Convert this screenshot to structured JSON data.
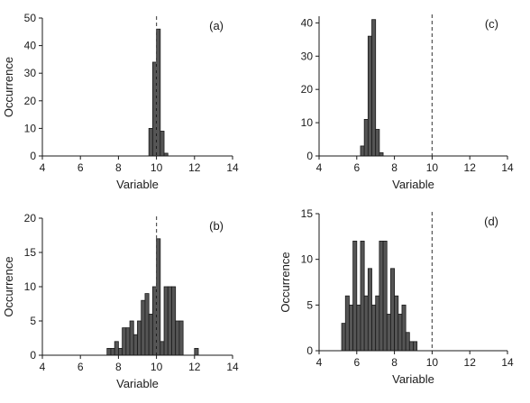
{
  "chart_data": [
    {
      "type": "bar",
      "panel_label": "(a)",
      "xlabel": "Variable",
      "ylabel": "Occurrence",
      "xlim": [
        4,
        14
      ],
      "ylim": [
        0,
        50
      ],
      "xticks": [
        4,
        6,
        8,
        10,
        12,
        14
      ],
      "yticks": [
        0,
        10,
        20,
        30,
        40,
        50
      ],
      "reference_x": 10,
      "bin_width": 0.2,
      "bins": [
        {
          "x": 9.6,
          "count": 10
        },
        {
          "x": 9.8,
          "count": 34
        },
        {
          "x": 10.0,
          "count": 46
        },
        {
          "x": 10.2,
          "count": 9
        },
        {
          "x": 10.4,
          "count": 1
        }
      ]
    },
    {
      "type": "bar",
      "panel_label": "(b)",
      "xlabel": "Variable",
      "ylabel": "Occurrence",
      "xlim": [
        4,
        14
      ],
      "ylim": [
        0,
        20
      ],
      "xticks": [
        4,
        6,
        8,
        10,
        12,
        14
      ],
      "yticks": [
        0,
        5,
        10,
        15,
        20
      ],
      "reference_x": 10,
      "bin_width": 0.2,
      "bins": [
        {
          "x": 7.4,
          "count": 1
        },
        {
          "x": 7.6,
          "count": 1
        },
        {
          "x": 7.8,
          "count": 2
        },
        {
          "x": 8.0,
          "count": 1
        },
        {
          "x": 8.2,
          "count": 4
        },
        {
          "x": 8.4,
          "count": 4
        },
        {
          "x": 8.6,
          "count": 5
        },
        {
          "x": 8.8,
          "count": 3
        },
        {
          "x": 9.0,
          "count": 5
        },
        {
          "x": 9.2,
          "count": 8
        },
        {
          "x": 9.4,
          "count": 9
        },
        {
          "x": 9.6,
          "count": 6
        },
        {
          "x": 9.8,
          "count": 10
        },
        {
          "x": 10.0,
          "count": 17
        },
        {
          "x": 10.2,
          "count": 2
        },
        {
          "x": 10.4,
          "count": 10
        },
        {
          "x": 10.6,
          "count": 10
        },
        {
          "x": 10.8,
          "count": 10
        },
        {
          "x": 11.0,
          "count": 5
        },
        {
          "x": 11.2,
          "count": 5
        },
        {
          "x": 12.0,
          "count": 1
        }
      ]
    },
    {
      "type": "bar",
      "panel_label": "(c)",
      "xlabel": "Variable",
      "ylabel": "",
      "xlim": [
        4,
        14
      ],
      "ylim": [
        0,
        42
      ],
      "xticks": [
        4,
        6,
        8,
        10,
        12,
        14
      ],
      "yticks": [
        0,
        10,
        20,
        30,
        40
      ],
      "reference_x": 10,
      "bin_width": 0.2,
      "bins": [
        {
          "x": 6.2,
          "count": 3
        },
        {
          "x": 6.4,
          "count": 11
        },
        {
          "x": 6.6,
          "count": 36
        },
        {
          "x": 6.8,
          "count": 41
        },
        {
          "x": 7.0,
          "count": 8
        },
        {
          "x": 7.2,
          "count": 1
        }
      ]
    },
    {
      "type": "bar",
      "panel_label": "(d)",
      "xlabel": "Variable",
      "ylabel": "Occurrence",
      "xlim": [
        4,
        14
      ],
      "ylim": [
        0,
        15
      ],
      "xticks": [
        4,
        6,
        8,
        10,
        12,
        14
      ],
      "yticks": [
        0,
        5,
        10,
        15
      ],
      "reference_x": 10,
      "bin_width": 0.2,
      "bins": [
        {
          "x": 5.2,
          "count": 3
        },
        {
          "x": 5.4,
          "count": 6
        },
        {
          "x": 5.6,
          "count": 5
        },
        {
          "x": 5.8,
          "count": 12
        },
        {
          "x": 6.0,
          "count": 5
        },
        {
          "x": 6.2,
          "count": 12
        },
        {
          "x": 6.4,
          "count": 6
        },
        {
          "x": 6.6,
          "count": 9
        },
        {
          "x": 6.8,
          "count": 5
        },
        {
          "x": 7.0,
          "count": 6
        },
        {
          "x": 7.2,
          "count": 12
        },
        {
          "x": 7.4,
          "count": 12
        },
        {
          "x": 7.6,
          "count": 4
        },
        {
          "x": 7.8,
          "count": 9
        },
        {
          "x": 8.0,
          "count": 6
        },
        {
          "x": 8.2,
          "count": 4
        },
        {
          "x": 8.4,
          "count": 5
        },
        {
          "x": 8.6,
          "count": 2
        },
        {
          "x": 8.8,
          "count": 1
        },
        {
          "x": 9.0,
          "count": 1
        }
      ]
    }
  ]
}
